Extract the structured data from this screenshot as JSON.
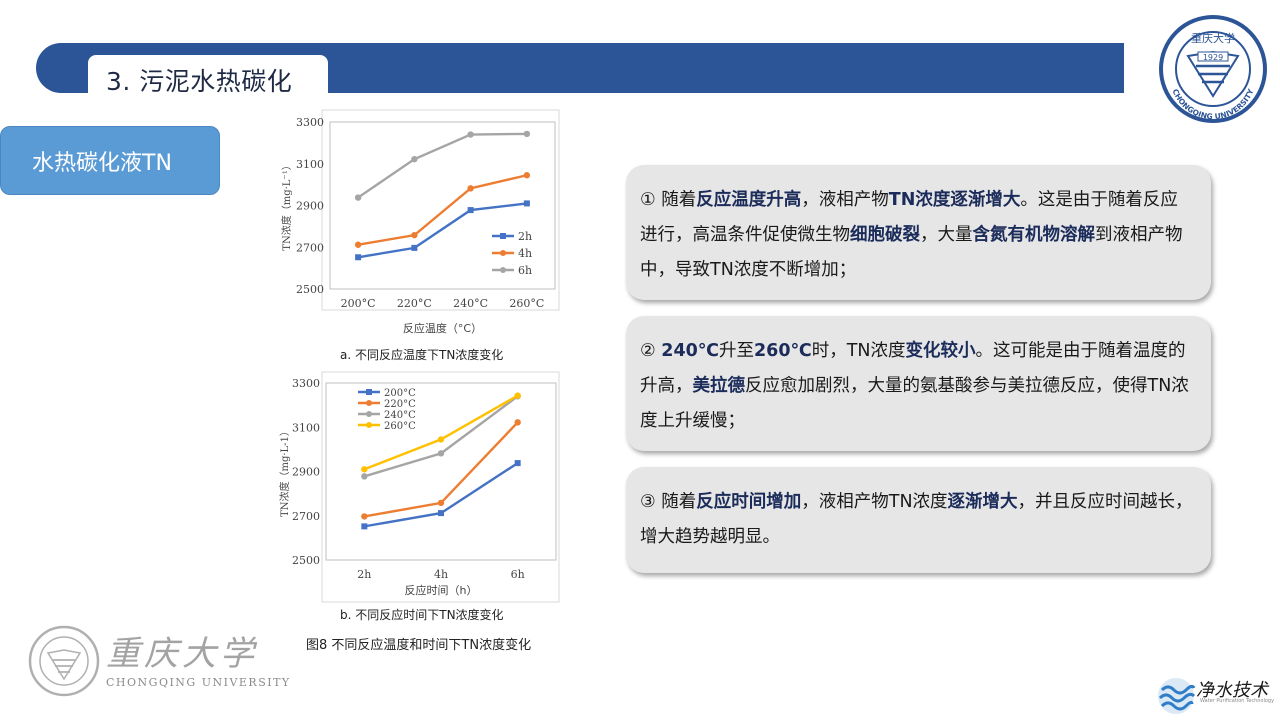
{
  "header": {
    "title": "3. 污泥水热碳化"
  },
  "section": {
    "label": "水热碳化液TN"
  },
  "university": {
    "name_cn": "重庆大学",
    "name_en": "CHONGQING UNIVERSITY",
    "seal_year": "1929"
  },
  "brand": {
    "name": "净水技术",
    "sub": "Water Purification Technology"
  },
  "figure": {
    "caption": "图8  不同反应温度和时间下TN浓度变化"
  },
  "colors": {
    "banner": "#2c5597",
    "button": "#5b9bd5",
    "card": "#e6e6e6",
    "s2h": "#4472c4",
    "s4h": "#ed7d31",
    "s6h": "#a5a5a5",
    "s260": "#ffc000"
  },
  "chart_data": [
    {
      "type": "line",
      "caption": "a. 不同反应温度下TN浓度变化",
      "xlabel": "反应温度（°C）",
      "ylabel": "TN浓度（mg·L⁻¹）",
      "categories": [
        "200°C",
        "220°C",
        "240°C",
        "260°C"
      ],
      "ylim": [
        2500,
        3300
      ],
      "yticks": [
        "2500",
        "2700",
        "2900",
        "3100",
        "3300"
      ],
      "legend_position": "right",
      "series": [
        {
          "name": "2h",
          "color": "#4472c4",
          "marker": "square",
          "values": [
            2652,
            2697,
            2878,
            2910
          ]
        },
        {
          "name": "4h",
          "color": "#ed7d31",
          "marker": "circle",
          "values": [
            2712,
            2758,
            2982,
            3045
          ]
        },
        {
          "name": "6h",
          "color": "#a5a5a5",
          "marker": "circle",
          "values": [
            2938,
            3122,
            3240,
            3243
          ]
        }
      ]
    },
    {
      "type": "line",
      "caption": "b. 不同反应时间下TN浓度变化",
      "xlabel": "反应时间（h）",
      "ylabel": "TN浓度（mg·L-1）",
      "categories": [
        "2h",
        "4h",
        "6h"
      ],
      "ylim": [
        2500,
        3300
      ],
      "yticks": [
        "2500",
        "2700",
        "2900",
        "3100",
        "3300"
      ],
      "legend_position": "top-left",
      "series": [
        {
          "name": "200°C",
          "color": "#4472c4",
          "marker": "square",
          "values": [
            2652,
            2712,
            2938
          ]
        },
        {
          "name": "220°C",
          "color": "#ed7d31",
          "marker": "circle",
          "values": [
            2697,
            2758,
            3122
          ]
        },
        {
          "name": "240°C",
          "color": "#a5a5a5",
          "marker": "circle",
          "values": [
            2878,
            2982,
            3240
          ]
        },
        {
          "name": "260°C",
          "color": "#ffc000",
          "marker": "circle",
          "values": [
            2910,
            3045,
            3243
          ]
        }
      ]
    }
  ],
  "cards": [
    {
      "segments": [
        {
          "t": "① 随着",
          "b": false
        },
        {
          "t": "反应温度升高",
          "b": true
        },
        {
          "t": "，液相产物",
          "b": false
        },
        {
          "t": "TN浓度逐渐增大",
          "b": true
        },
        {
          "t": "。这是由于随着反应进行，高温条件促使微生物",
          "b": false
        },
        {
          "t": "细胞破裂",
          "b": true
        },
        {
          "t": "，大量",
          "b": false
        },
        {
          "t": "含氮有机物溶解",
          "b": true
        },
        {
          "t": "到液相产物中，导致TN浓度不断增加；",
          "b": false
        }
      ]
    },
    {
      "segments": [
        {
          "t": "② ",
          "b": false
        },
        {
          "t": "240℃",
          "b": true
        },
        {
          "t": "升至",
          "b": false
        },
        {
          "t": "260℃",
          "b": true
        },
        {
          "t": "时，TN浓度",
          "b": false
        },
        {
          "t": "变化较小",
          "b": true
        },
        {
          "t": "。这可能是由于随着温度的升高，",
          "b": false
        },
        {
          "t": "美拉德",
          "b": true
        },
        {
          "t": "反应愈加剧烈，大量的氨基酸参与美拉德反应，使得TN浓度上升缓慢；",
          "b": false
        }
      ]
    },
    {
      "segments": [
        {
          "t": "③ 随着",
          "b": false
        },
        {
          "t": "反应时间增加",
          "b": true
        },
        {
          "t": "，液相产物TN浓度",
          "b": false
        },
        {
          "t": "逐渐增大",
          "b": true
        },
        {
          "t": "，并且反应时间越长，增大趋势越明显。",
          "b": false
        }
      ]
    }
  ]
}
